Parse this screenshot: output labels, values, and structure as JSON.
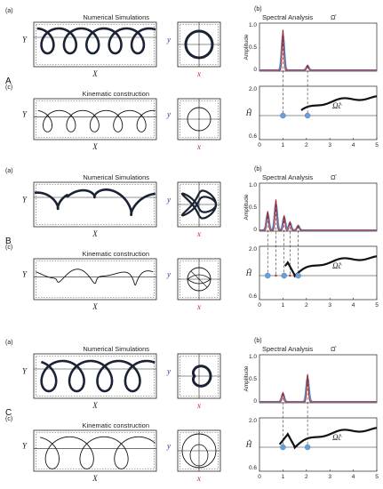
{
  "sections": [
    {
      "letter": "A",
      "panel_a": "(a)",
      "panel_b": "(b)",
      "panel_c": "(c)",
      "sim_title": "Numerical Simulations",
      "kin_title": "Kinematic construction",
      "spec_title": "Spectral Analysis",
      "omega_symbol": "Ω̂",
      "y_amp": "Amplitude",
      "y_H": "Ĥ",
      "omega_c": "Ω̂c",
      "amp_ticks": [
        "1.0",
        "0.5",
        "0"
      ],
      "h_ticks": [
        "2.0",
        "0.6"
      ],
      "x_ticks": [
        "0",
        "1",
        "2",
        "3",
        "4",
        "5"
      ],
      "X": "X",
      "Y": "Y",
      "x": "x",
      "y": "y"
    },
    {
      "letter": "B",
      "panel_a": "(a)",
      "panel_b": "(b)",
      "panel_c": "(c)",
      "sim_title": "Numerical Simulations",
      "kin_title": "Kinematic construction",
      "spec_title": "Spectral Analysis",
      "omega_symbol": "Ω̂",
      "y_amp": "Amplitude",
      "y_H": "Ĥ",
      "omega_c": "Ω̂c",
      "amp_ticks": [
        "1.0",
        "0.5",
        "0"
      ],
      "h_ticks": [
        "2.0",
        "0.6"
      ],
      "x_ticks": [
        "0",
        "1",
        "2",
        "3",
        "4",
        "5"
      ],
      "X": "X",
      "Y": "Y",
      "x": "x",
      "y": "y"
    },
    {
      "letter": "C",
      "panel_a": "(a)",
      "panel_b": "(b)",
      "panel_c": "(c)",
      "sim_title": "Numerical Simulations",
      "kin_title": "Kinematic construction",
      "spec_title": "Spectral Analysis",
      "omega_symbol": "Ω̂",
      "y_amp": "Amplitude",
      "y_H": "Ĥ",
      "omega_c": "Ω̂c",
      "amp_ticks": [
        "1.0",
        "0.5",
        "0"
      ],
      "h_ticks": [
        "2.0",
        "0.6"
      ],
      "x_ticks": [
        "0",
        "1",
        "2",
        "3",
        "4",
        "5"
      ],
      "X": "X",
      "Y": "Y",
      "x": "x",
      "y": "y"
    }
  ],
  "colors": {
    "trajectory": "#1a2233",
    "spectrum_red": "#c0282e",
    "spectrum_blue": "#5b8fc9",
    "marker": "#6a9fd6"
  }
}
